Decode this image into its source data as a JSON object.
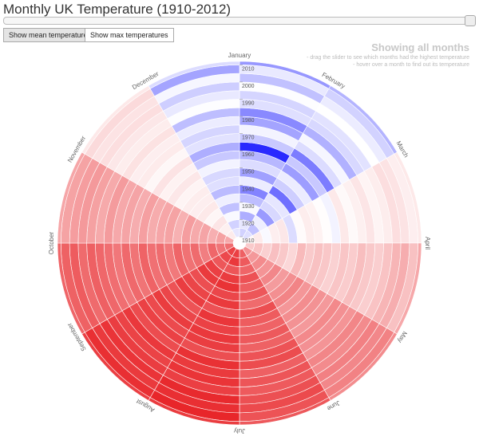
{
  "header": {
    "title": "Monthly UK Temperature (1910-2012)"
  },
  "controls": {
    "buttons": [
      "Show mean temperatures",
      "Show max temperatures"
    ]
  },
  "info": {
    "heading": "Showing all months",
    "lines": [
      "- drag the slider to see which months had the highest temperature",
      "- hover over a month to find out its temperature"
    ]
  },
  "chart_data": {
    "type": "radial",
    "x": [
      1910,
      1915,
      1920,
      1925,
      1930,
      1935,
      1940,
      1945,
      1950,
      1955,
      1960,
      1965,
      1970,
      1975,
      1980,
      1985,
      1990,
      1995,
      2000,
      2005,
      2010
    ],
    "ylim": [
      1910,
      2012
    ],
    "yticks": [
      1910,
      1920,
      1930,
      1940,
      1950,
      1960,
      1970,
      1980,
      1990,
      2000,
      2010
    ],
    "color_scale": [
      "#2a2aff",
      "#ffffff",
      "#e8262a"
    ],
    "series": [
      {
        "name": "January",
        "values": [
          3.6,
          4.2,
          2.5,
          4.8,
          3.0,
          1.2,
          4.4,
          2.1,
          3.9,
          2.8,
          -1.5,
          3.3,
          4.6,
          2.2,
          1.4,
          4.0,
          3.7,
          4.9,
          3.1,
          4.3,
          1.8
        ]
      },
      {
        "name": "February",
        "values": [
          4.0,
          3.1,
          4.5,
          1.9,
          3.8,
          4.2,
          0.6,
          3.5,
          4.4,
          2.0,
          3.3,
          1.0,
          3.9,
          4.7,
          2.6,
          3.8,
          4.1,
          5.0,
          4.4,
          3.6,
          2.7
        ]
      },
      {
        "name": "March",
        "values": [
          5.5,
          6.1,
          4.8,
          5.9,
          6.3,
          3.9,
          5.2,
          6.0,
          5.7,
          5.1,
          4.6,
          6.2,
          5.3,
          5.8,
          6.4,
          5.6,
          6.0,
          6.8,
          6.5,
          5.9,
          6.2
        ]
      },
      {
        "name": "April",
        "values": [
          7.9,
          8.3,
          7.6,
          8.5,
          8.0,
          7.2,
          8.8,
          7.9,
          8.4,
          8.1,
          7.5,
          8.2,
          7.8,
          8.6,
          8.0,
          7.7,
          8.3,
          9.1,
          9.5,
          8.4,
          9.8
        ]
      },
      {
        "name": "May",
        "values": [
          11.0,
          10.7,
          11.4,
          10.9,
          11.6,
          10.5,
          11.2,
          11.8,
          10.8,
          11.3,
          11.0,
          10.6,
          11.5,
          11.1,
          10.9,
          11.7,
          11.4,
          12.0,
          11.6,
          11.9,
          11.3
        ]
      },
      {
        "name": "June",
        "values": [
          13.8,
          14.1,
          13.5,
          14.6,
          13.9,
          14.3,
          13.2,
          14.8,
          14.0,
          13.6,
          14.2,
          13.7,
          14.5,
          14.9,
          13.8,
          14.4,
          14.1,
          14.7,
          15.0,
          14.5,
          14.2
        ]
      },
      {
        "name": "July",
        "values": [
          15.6,
          16.0,
          14.4,
          15.8,
          16.3,
          15.2,
          15.9,
          14.6,
          16.1,
          15.5,
          16.0,
          15.7,
          14.8,
          16.4,
          15.9,
          16.2,
          15.6,
          16.8,
          16.5,
          17.0,
          15.8
        ]
      },
      {
        "name": "August",
        "values": [
          15.4,
          15.1,
          14.3,
          15.6,
          15.9,
          14.8,
          15.3,
          15.7,
          14.5,
          15.2,
          15.8,
          15.0,
          15.5,
          14.9,
          16.0,
          15.4,
          15.7,
          16.2,
          15.9,
          16.5,
          15.6
        ]
      },
      {
        "name": "September",
        "values": [
          13.0,
          12.6,
          13.4,
          12.1,
          13.2,
          12.8,
          13.5,
          12.4,
          13.1,
          12.9,
          13.6,
          12.7,
          13.3,
          12.5,
          13.0,
          13.4,
          13.8,
          13.2,
          14.0,
          13.7,
          13.5
        ]
      },
      {
        "name": "October",
        "values": [
          9.8,
          10.2,
          9.4,
          10.0,
          9.7,
          10.4,
          9.3,
          10.1,
          9.9,
          9.6,
          10.3,
          9.5,
          10.0,
          9.8,
          10.5,
          9.7,
          10.2,
          10.6,
          10.4,
          10.1,
          9.9
        ]
      },
      {
        "name": "November",
        "values": [
          6.1,
          5.8,
          6.4,
          5.5,
          6.2,
          5.9,
          6.0,
          5.6,
          6.3,
          5.7,
          6.5,
          5.4,
          6.1,
          5.9,
          6.6,
          6.0,
          6.3,
          6.8,
          6.5,
          7.0,
          6.2
        ]
      },
      {
        "name": "December",
        "values": [
          4.2,
          3.6,
          4.8,
          3.1,
          4.5,
          2.9,
          4.0,
          3.8,
          4.6,
          3.3,
          2.5,
          4.1,
          3.7,
          4.4,
          3.0,
          4.9,
          4.3,
          3.5,
          4.7,
          2.2,
          3.9
        ]
      }
    ]
  }
}
